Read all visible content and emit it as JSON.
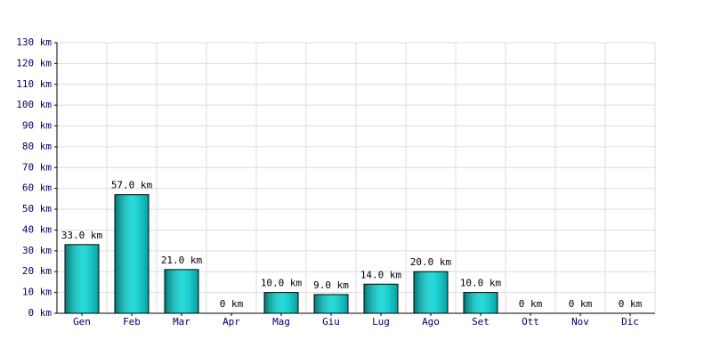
{
  "chart_data": {
    "type": "bar",
    "categories": [
      "Gen",
      "Feb",
      "Mar",
      "Apr",
      "Mag",
      "Giu",
      "Lug",
      "Ago",
      "Set",
      "Ott",
      "Nov",
      "Dic"
    ],
    "values": [
      33,
      57,
      21,
      0,
      10,
      9,
      14,
      20,
      10,
      0,
      0,
      0
    ],
    "value_labels": [
      "33.0 km",
      "57.0 km",
      "21.0 km",
      "0 km",
      "10.0 km",
      "9.0 km",
      "14.0 km",
      "20.0 km",
      "10.0 km",
      "0 km",
      "0 km",
      "0 km"
    ],
    "color": "#00d4d4",
    "ylim": [
      0,
      130
    ],
    "yticks": [
      {
        "value": 0,
        "label": "0 km"
      },
      {
        "value": 10,
        "label": "10 km"
      },
      {
        "value": 20,
        "label": "20 km"
      },
      {
        "value": 30,
        "label": "30 km"
      },
      {
        "value": 40,
        "label": "40 km"
      },
      {
        "value": 50,
        "label": "50 km"
      },
      {
        "value": 60,
        "label": "60 km"
      },
      {
        "value": 70,
        "label": "70 km"
      },
      {
        "value": 80,
        "label": "80 km"
      },
      {
        "value": 90,
        "label": "90 km"
      },
      {
        "value": 100,
        "label": "100 km"
      },
      {
        "value": 110,
        "label": "110 km"
      },
      {
        "value": 120,
        "label": "120 km"
      },
      {
        "value": 130,
        "label": "130 km"
      }
    ],
    "grid": true
  }
}
